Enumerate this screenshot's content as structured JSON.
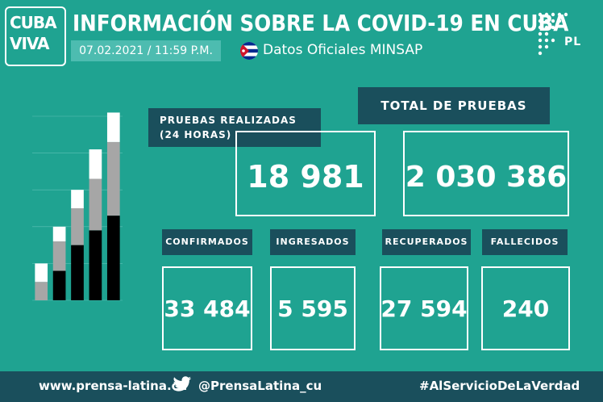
{
  "logo": {
    "line1": "CUBA",
    "line2": "VIVA"
  },
  "header": {
    "title": "INFORMACIÓN SOBRE LA COVID-19 EN CUBA",
    "datetime": "07.02.2021 / 11:59 P.M.",
    "source": "Datos Oficiales MINSAP",
    "agency_mark": "PL"
  },
  "tests_24h": {
    "label_line1": "PRUEBAS REALIZADAS",
    "label_line2": "(24 HORAS)",
    "value": "18 981"
  },
  "tests_total": {
    "label": "TOTAL DE PRUEBAS",
    "value": "2 030 386"
  },
  "stats": [
    {
      "label": "CONFIRMADOS",
      "value": "33 484"
    },
    {
      "label": "INGRESADOS",
      "value": "5 595"
    },
    {
      "label": "RECUPERADOS",
      "value": "27 594"
    },
    {
      "label": "FALLECIDOS",
      "value": "240"
    }
  ],
  "chart_data": {
    "type": "bar",
    "stacked": true,
    "ylim": [
      0,
      50
    ],
    "series": [
      {
        "values": [
          0,
          8,
          15,
          19,
          23
        ]
      },
      {
        "values": [
          5,
          8,
          10,
          14,
          20
        ]
      },
      {
        "values": [
          5,
          4,
          5,
          8,
          8
        ]
      }
    ],
    "colors": [
      "#000000",
      "#a6a6a6",
      "#ffffff"
    ],
    "grid": true
  },
  "footer": {
    "website": "www.prensa-latina.cu",
    "twitter": "@PrensaLatina_cu",
    "hashtag": "#AlServicioDeLaVerdad"
  }
}
